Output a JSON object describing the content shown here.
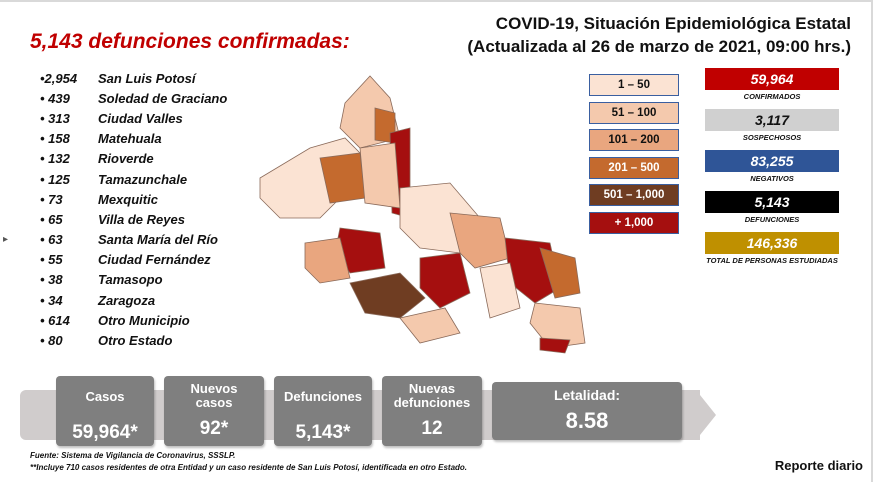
{
  "title": {
    "line1": "COVID-19, Situación Epidemiológica Estatal",
    "line2": "(Actualizada al 26 de marzo de 2021, 09:00 hrs.)"
  },
  "headline": "5,143 defunciones confirmadas:",
  "deaths_by_municipality": [
    {
      "value": "•2,954",
      "place": "San Luis Potosí"
    },
    {
      "value": "• 439",
      "place": "Soledad de Graciano"
    },
    {
      "value": "• 313",
      "place": "Ciudad Valles"
    },
    {
      "value": "• 158",
      "place": "Matehuala"
    },
    {
      "value": "• 132",
      "place": "Rioverde"
    },
    {
      "value": "• 125",
      "place": "Tamazunchale"
    },
    {
      "value": "• 73",
      "place": "Mexquitic"
    },
    {
      "value": "• 65",
      "place": "Villa de Reyes"
    },
    {
      "value": "• 63",
      "place": "Santa María del Río"
    },
    {
      "value": "• 55",
      "place": "Ciudad Fernández"
    },
    {
      "value": "• 38",
      "place": "Tamasopo"
    },
    {
      "value": "• 34",
      "place": "Zaragoza"
    },
    {
      "value": "• 614",
      "place": "Otro Municipio"
    },
    {
      "value": "• 80",
      "place": "Otro Estado"
    }
  ],
  "legend": [
    {
      "label": "1 – 50",
      "color": "#fbe3d3",
      "text_color": "#111111"
    },
    {
      "label": "51 – 100",
      "color": "#f4c9ad",
      "text_color": "#111111"
    },
    {
      "label": "101 – 200",
      "color": "#e9a67f",
      "text_color": "#111111"
    },
    {
      "label": "201 – 500",
      "color": "#c46a2e",
      "text_color": "#ffffff"
    },
    {
      "label": "501 – 1,000",
      "color": "#6f3d22",
      "text_color": "#ffffff"
    },
    {
      "label": "+ 1,000",
      "color": "#a50f0f",
      "text_color": "#ffffff"
    }
  ],
  "stats": [
    {
      "value": "59,964",
      "label": "CONFIRMADOS",
      "color": "#c00000",
      "text_color": "#ffffff"
    },
    {
      "value": "3,117",
      "label": "SOSPECHOSOS",
      "color": "#d0d0d0",
      "text_color": "#111111"
    },
    {
      "value": "83,255",
      "label": "NEGATIVOS",
      "color": "#2f5597",
      "text_color": "#ffffff"
    },
    {
      "value": "5,143",
      "label": "DEFUNCIONES",
      "color": "#000000",
      "text_color": "#ffffff"
    },
    {
      "value": "146,336",
      "label": "TOTAL DE PERSONAS ESTUDIADAS",
      "color": "#bf9000",
      "text_color": "#ffffff"
    }
  ],
  "cards": [
    {
      "label": "Casos",
      "value": "59,964*"
    },
    {
      "label": "Nuevos casos",
      "value": "92*"
    },
    {
      "label": "Defunciones",
      "value": "5,143*"
    },
    {
      "label": "Nuevas defunciones",
      "value": "12"
    },
    {
      "label": "Letalidad:",
      "value": "8.58"
    }
  ],
  "footer": {
    "source": "Fuente: Sistema de Vigilancia de Coronavirus, SSSLP.",
    "note": "**Incluye 710 casos residentes de otra Entidad y un caso residente de San Luis Potosí, identificada en otro Estado."
  },
  "report_label": "Reporte diario"
}
